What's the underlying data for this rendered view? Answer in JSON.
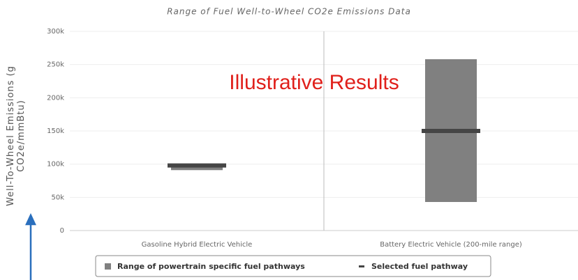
{
  "chart_data": {
    "type": "range_bar",
    "title": "Range of Fuel Well-to-Wheel CO2e Emissions Data",
    "y_label": "Well-To-Wheel Emissions (g CO2e/mmBtu)",
    "annotation": "Illustrative Results",
    "categories": [
      "Gasoline Hybrid Electric Vehicle",
      "Battery Electric Vehicle (200-mile range)"
    ],
    "series": [
      {
        "name": "Range of powertrain specific fuel pathways",
        "color": "#808080",
        "low": [
          91000,
          43000
        ],
        "high": [
          98000,
          258000
        ]
      },
      {
        "name": "Selected fuel pathway",
        "color": "#454545",
        "values": [
          98000,
          150000
        ]
      }
    ],
    "ylim": [
      0,
      300000
    ],
    "yticks": [
      0,
      {
        "value": 50000,
        "label": "50k"
      },
      {
        "value": 100000,
        "label": "100k"
      },
      {
        "value": 150000,
        "label": "150k"
      },
      {
        "value": 200000,
        "label": "200k"
      },
      {
        "value": 250000,
        "label": "250k"
      },
      {
        "value": 300000,
        "label": "300k"
      }
    ],
    "grid": true
  }
}
